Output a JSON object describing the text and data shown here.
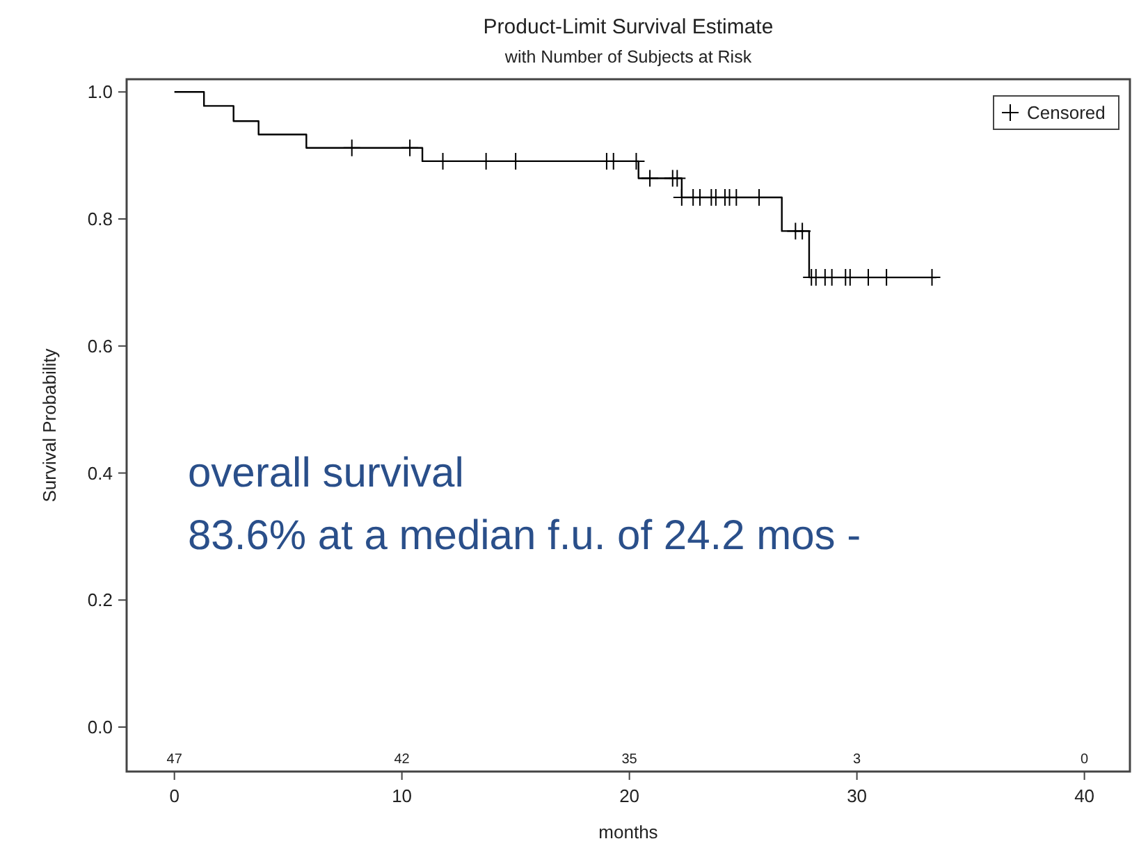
{
  "chart_data": {
    "type": "step",
    "title": "Product-Limit Survival Estimate",
    "subtitle": "with Number of Subjects at Risk",
    "xlabel": "months",
    "ylabel": "Survival Probability",
    "xlim": [
      -2.1,
      42
    ],
    "xticks": [
      0,
      10,
      20,
      30,
      40
    ],
    "ylim": [
      -0.07,
      1.02
    ],
    "yticks": [
      {
        "value": 0,
        "label": "0.0"
      },
      {
        "value": 0.2,
        "label": "0.2"
      },
      {
        "value": 0.4,
        "label": "0.4"
      },
      {
        "value": 0.6,
        "label": "0.6"
      },
      {
        "value": 0.8,
        "label": "0.8"
      },
      {
        "value": 1,
        "label": "1.0"
      }
    ],
    "grid": false,
    "legend": "top right",
    "series": [
      {
        "color": "#000000",
        "marker": "none",
        "x": [
          0,
          1.3,
          2.6,
          3.7,
          5.8,
          10.9,
          20.4,
          22.3,
          26.7,
          27.9,
          33.5
        ],
        "values": [
          1,
          0.978,
          0.954,
          0.933,
          0.912,
          0.891,
          0.864,
          0.834,
          0.781,
          0.708,
          0.708
        ]
      },
      {
        "type": "scatter",
        "name": "Censored",
        "color": "#000000",
        "marker": "cross",
        "x": [
          7.8,
          10.35,
          11.8,
          13.7,
          15.0,
          19.0,
          19.3,
          20.3,
          20.9,
          21.9,
          22.1,
          22.3,
          22.8,
          23.1,
          23.6,
          23.8,
          24.2,
          24.4,
          24.7,
          25.7,
          27.3,
          27.6,
          28.0,
          28.2,
          28.6,
          28.9,
          29.5,
          29.7,
          30.5,
          31.3,
          33.3
        ],
        "values": [
          0.912,
          0.912,
          0.891,
          0.891,
          0.891,
          0.891,
          0.891,
          0.891,
          0.864,
          0.864,
          0.864,
          0.834,
          0.834,
          0.834,
          0.834,
          0.834,
          0.834,
          0.834,
          0.834,
          0.834,
          0.781,
          0.781,
          0.708,
          0.708,
          0.708,
          0.708,
          0.708,
          0.708,
          0.708,
          0.708,
          0.708
        ]
      }
    ],
    "annotations": [
      "47",
      "42",
      "35",
      "3",
      "0",
      "overall survival",
      "83.6% at a median f.u. of 24.2 mos -"
    ]
  }
}
